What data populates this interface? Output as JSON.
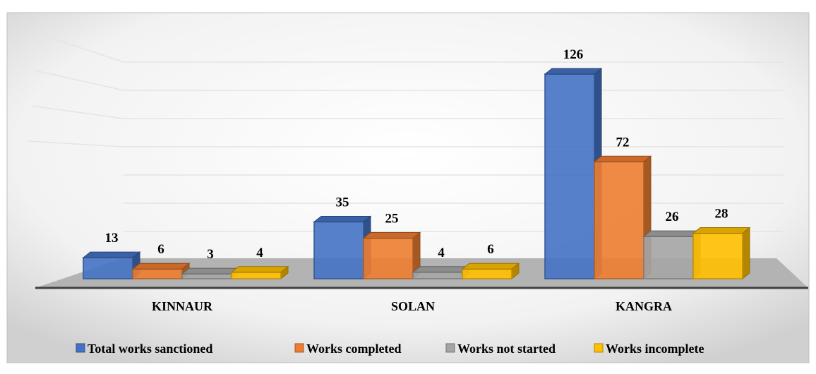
{
  "chart_data": {
    "type": "bar",
    "categories": [
      "KINNAUR",
      "SOLAN",
      "KANGRA"
    ],
    "series": [
      {
        "name": "Total works sanctioned",
        "color": "#4472c4",
        "values": [
          13,
          35,
          126
        ]
      },
      {
        "name": "Works completed",
        "color": "#ed7d31",
        "values": [
          6,
          25,
          72
        ]
      },
      {
        "name": "Works not started",
        "color": "#a5a5a5",
        "values": [
          3,
          4,
          26
        ]
      },
      {
        "name": "Works incomplete",
        "color": "#ffc000",
        "values": [
          4,
          6,
          28
        ]
      }
    ]
  }
}
